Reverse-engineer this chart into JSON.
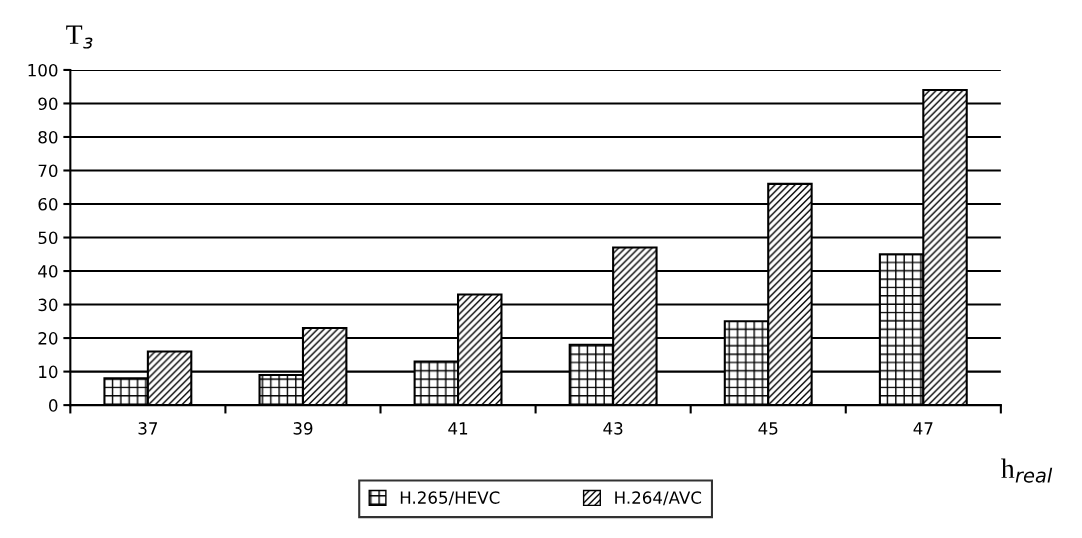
{
  "chart_data": {
    "type": "bar",
    "ylabel": "T$_{з}$",
    "xlabel": "h$_{real}$",
    "categories": [
      "37",
      "39",
      "41",
      "43",
      "45",
      "47"
    ],
    "series": [
      {
        "name": "H.265/HEVC",
        "color": "#000000",
        "values": [
          8,
          9,
          13,
          18,
          25,
          45
        ]
      },
      {
        "name": "H.264/AVC",
        "color": "#000000",
        "values": [
          16,
          23,
          33,
          47,
          66,
          94
        ]
      }
    ],
    "ylim": [
      0,
      100
    ],
    "yticks": [
      0,
      10,
      20,
      30,
      40,
      50,
      60,
      70,
      80,
      90,
      100
    ],
    "grid": "y",
    "legend": "bottom"
  }
}
